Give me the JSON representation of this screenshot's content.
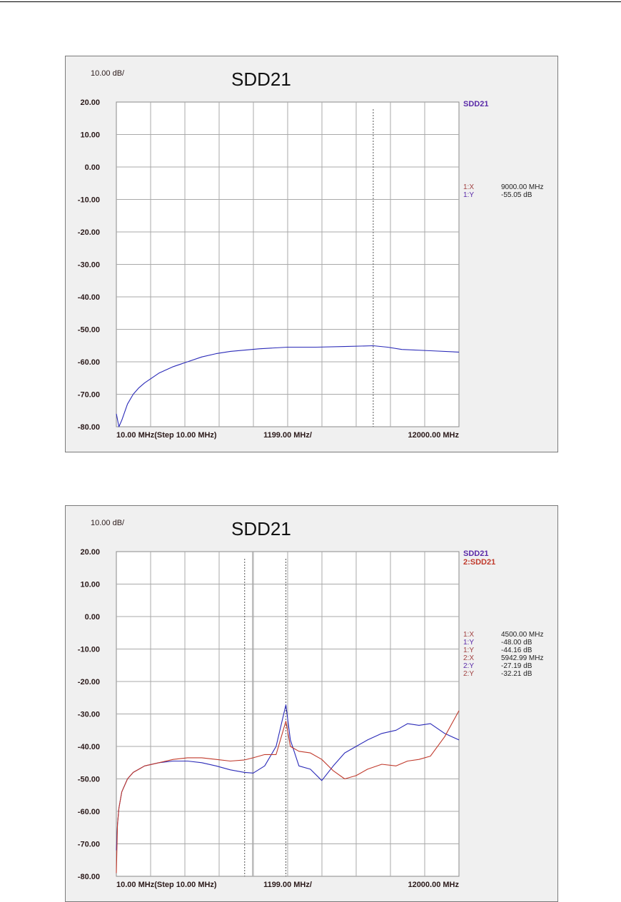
{
  "colors": {
    "series_blue": "#2a2ab8",
    "series_red": "#c0392b",
    "marker_x": "#a04040",
    "label_purple": "#5a2aa8",
    "grid": "#a9a9a9",
    "text": "#2b1a1a"
  },
  "chart_data": [
    {
      "type": "line",
      "title": "SDD21",
      "scale_label": "10.00 dB/",
      "x_tick_labels": [
        "10.00 MHz(Step 10.00 MHz)",
        "1199.00 MHz/",
        "12000.00 MHz"
      ],
      "y_tick_labels": [
        "20.00",
        "10.00",
        "0.00",
        "-10.00",
        "-20.00",
        "-30.00",
        "-40.00",
        "-50.00",
        "-60.00",
        "-70.00",
        "-80.00"
      ],
      "xlim": [
        10,
        12000
      ],
      "ylim": [
        -80,
        20
      ],
      "grid": true,
      "legend": "right",
      "series": [
        {
          "name": "SDD21",
          "color": "#2a2ab8",
          "x": [
            10,
            100,
            200,
            400,
            600,
            800,
            1000,
            1500,
            2000,
            2500,
            3000,
            3500,
            4000,
            5000,
            6000,
            7000,
            8000,
            9000,
            9500,
            10000,
            11000,
            12000
          ],
          "y": [
            -76,
            -80,
            -78,
            -73,
            -70,
            -68,
            -66.5,
            -63.5,
            -61.5,
            -60,
            -58.5,
            -57.5,
            -56.8,
            -56,
            -55.5,
            -55.5,
            -55.3,
            -55.05,
            -55.5,
            -56.2,
            -56.6,
            -57
          ]
        }
      ],
      "markers": [
        {
          "x": 9000
        }
      ],
      "readouts": [
        {
          "label": "1:X",
          "value": "9000.00 MHz",
          "label_color": "#a04040"
        },
        {
          "label": "1:Y",
          "value": "-55.05 dB",
          "label_color": "#5a2aa8"
        }
      ]
    },
    {
      "type": "line",
      "title": "SDD21",
      "scale_label": "10.00 dB/",
      "x_tick_labels": [
        "10.00 MHz(Step 10.00 MHz)",
        "1199.00 MHz/",
        "12000.00 MHz"
      ],
      "y_tick_labels": [
        "20.00",
        "10.00",
        "0.00",
        "-10.00",
        "-20.00",
        "-30.00",
        "-40.00",
        "-50.00",
        "-60.00",
        "-70.00",
        "-80.00"
      ],
      "xlim": [
        10,
        12000
      ],
      "ylim": [
        -80,
        20
      ],
      "grid": true,
      "legend": "right",
      "series": [
        {
          "name": "SDD21",
          "color": "#2a2ab8",
          "x": [
            10,
            50,
            100,
            200,
            400,
            600,
            800,
            1000,
            1500,
            2000,
            2500,
            3000,
            3500,
            4000,
            4500,
            4800,
            5200,
            5600,
            5943,
            6100,
            6400,
            6800,
            7200,
            7600,
            8000,
            8400,
            8800,
            9300,
            9800,
            10200,
            10600,
            11000,
            11500,
            12000
          ],
          "y": [
            -72,
            -64,
            -59,
            -54,
            -50,
            -48,
            -47,
            -46,
            -45,
            -44.5,
            -44.5,
            -45,
            -46,
            -47.2,
            -48,
            -48.2,
            -46,
            -40,
            -27.19,
            -38,
            -46,
            -47,
            -50.5,
            -46,
            -42,
            -40,
            -38,
            -36,
            -35,
            -33,
            -33.5,
            -33,
            -36,
            -38
          ]
        },
        {
          "name": "2:SDD21",
          "color": "#c0392b",
          "x": [
            10,
            50,
            100,
            200,
            400,
            600,
            800,
            1000,
            1500,
            2000,
            2500,
            3000,
            3500,
            4000,
            4500,
            4800,
            5200,
            5600,
            5943,
            6100,
            6400,
            6800,
            7200,
            7600,
            8000,
            8400,
            8800,
            9300,
            9800,
            10200,
            10600,
            11000,
            11500,
            12000
          ],
          "y": [
            -79,
            -64,
            -59,
            -54,
            -50,
            -48,
            -47,
            -46,
            -45,
            -44,
            -43.5,
            -43.5,
            -44,
            -44.5,
            -44.16,
            -43.5,
            -42.5,
            -42.5,
            -32.21,
            -40,
            -41.5,
            -42,
            -44,
            -47.5,
            -50,
            -49,
            -47,
            -45.5,
            -46,
            -44.5,
            -44,
            -43,
            -37,
            -29
          ]
        }
      ],
      "markers": [
        {
          "x": 4500
        },
        {
          "x": 5942.99
        }
      ],
      "readouts": [
        {
          "label": "1:X",
          "value": "4500.00 MHz",
          "label_color": "#a04040"
        },
        {
          "label": "1:Y",
          "value": "-48.00 dB",
          "label_color": "#5a2aa8"
        },
        {
          "label": "1:Y",
          "value": "-44.16 dB",
          "label_color": "#a04040"
        },
        {
          "label": "2:X",
          "value": "5942.99 MHz",
          "label_color": "#a04040"
        },
        {
          "label": "2:Y",
          "value": "-27.19 dB",
          "label_color": "#5a2aa8"
        },
        {
          "label": "2:Y",
          "value": "-32.21 dB",
          "label_color": "#a04040"
        }
      ]
    }
  ]
}
